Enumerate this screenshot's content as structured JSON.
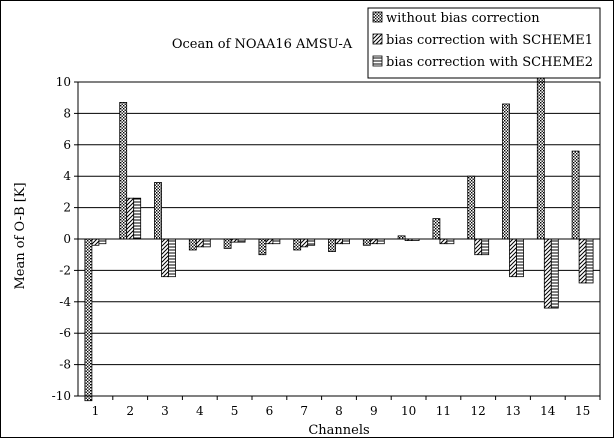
{
  "chart_data": {
    "type": "bar",
    "title": "Ocean of NOAA16 AMSU-A",
    "xlabel": "Channels",
    "ylabel": "Mean of O-B [K]",
    "categories": [
      "1",
      "2",
      "3",
      "4",
      "5",
      "6",
      "7",
      "8",
      "9",
      "10",
      "11",
      "12",
      "13",
      "14",
      "15"
    ],
    "ylim": [
      -10,
      10
    ],
    "yticks": [
      10,
      8,
      6,
      4,
      2,
      0,
      -2,
      -4,
      -6,
      -8,
      -10
    ],
    "ytick_labels": [
      "10",
      "8",
      "6",
      "4",
      "2",
      "0",
      "-2",
      "-4",
      "-6",
      "-8",
      "-10"
    ],
    "grid": true,
    "legend_position": "top-right",
    "series": [
      {
        "name": "without bias correction",
        "pattern": "dots",
        "values": [
          -10.3,
          8.7,
          3.6,
          -0.7,
          -0.6,
          -1.0,
          -0.7,
          -0.8,
          -0.4,
          0.2,
          1.3,
          4.0,
          8.6,
          10.3,
          5.6
        ]
      },
      {
        "name": "bias correction with SCHEME1",
        "pattern": "diagonal",
        "values": [
          -0.4,
          2.6,
          -2.4,
          -0.5,
          -0.2,
          -0.3,
          -0.5,
          -0.3,
          -0.3,
          -0.1,
          -0.3,
          -1.0,
          -2.4,
          -4.4,
          -2.8
        ]
      },
      {
        "name": "bias correction with SCHEME2",
        "pattern": "horizontal",
        "values": [
          -0.3,
          2.6,
          -2.4,
          -0.5,
          -0.2,
          -0.3,
          -0.4,
          -0.3,
          -0.3,
          -0.1,
          -0.3,
          -1.0,
          -2.4,
          -4.4,
          -2.8
        ]
      }
    ]
  }
}
